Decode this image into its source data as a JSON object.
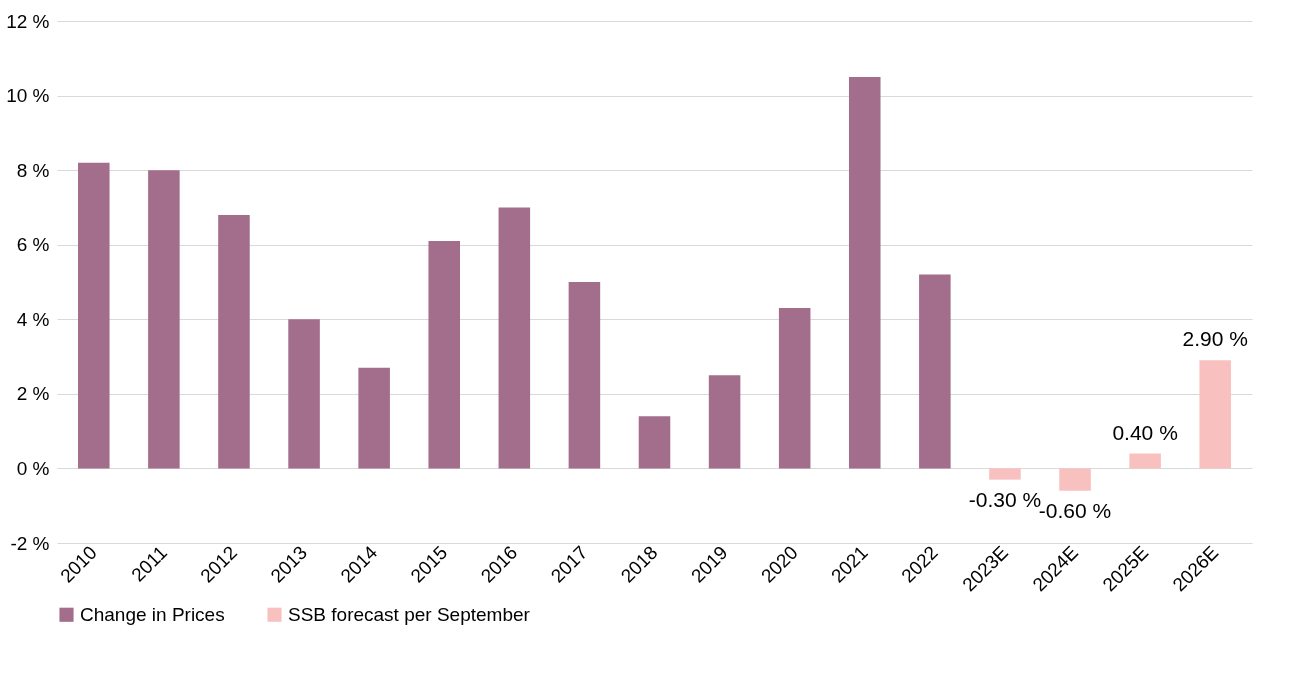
{
  "chart_data": {
    "type": "bar",
    "categories": [
      "2010",
      "2011",
      "2012",
      "2013",
      "2014",
      "2015",
      "2016",
      "2017",
      "2018",
      "2019",
      "2020",
      "2021",
      "2022",
      "2023E",
      "2024E",
      "2025E",
      "2026E"
    ],
    "series": [
      {
        "name": "Change in Prices",
        "color": "#a36d8c",
        "values": [
          8.2,
          8.0,
          6.8,
          4.0,
          2.7,
          6.1,
          7.0,
          5.0,
          1.4,
          2.5,
          4.3,
          10.5,
          5.2,
          null,
          null,
          null,
          null
        ]
      },
      {
        "name": "SSB forecast per September",
        "color": "#f9c0c0",
        "values": [
          null,
          null,
          null,
          null,
          null,
          null,
          null,
          null,
          null,
          null,
          null,
          null,
          null,
          -0.3,
          -0.6,
          0.4,
          2.9
        ],
        "value_labels": [
          null,
          null,
          null,
          null,
          null,
          null,
          null,
          null,
          null,
          null,
          null,
          null,
          null,
          "-0.30 %",
          "-0.60 %",
          "0.40 %",
          "2.90 %"
        ]
      }
    ],
    "ylim": [
      -2,
      12
    ],
    "yticks": [
      {
        "value": -2,
        "label": "-2 %"
      },
      {
        "value": 0,
        "label": "0 %"
      },
      {
        "value": 2,
        "label": "2 %"
      },
      {
        "value": 4,
        "label": "4 %"
      },
      {
        "value": 6,
        "label": "6 %"
      },
      {
        "value": 8,
        "label": "8 %"
      },
      {
        "value": 10,
        "label": "10 %"
      },
      {
        "value": 12,
        "label": "12 %"
      }
    ],
    "grid": "y",
    "legend": "bottom"
  }
}
